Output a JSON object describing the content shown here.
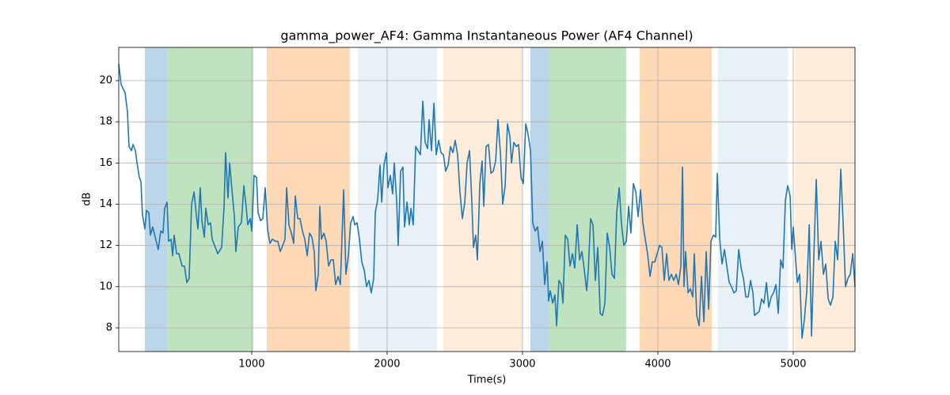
{
  "chart_data": {
    "type": "line",
    "title": "gamma_power_AF4: Gamma Instantaneous Power (AF4 Channel)",
    "xlabel": "Time(s)",
    "ylabel": "dB",
    "xlim": [
      18,
      5456
    ],
    "ylim": [
      6.85,
      21.61
    ],
    "xticks": [
      1000,
      2000,
      3000,
      4000,
      5000
    ],
    "yticks": [
      8,
      10,
      12,
      14,
      16,
      18,
      20
    ],
    "grid": true,
    "spans": [
      {
        "start": 211,
        "end": 374,
        "color": "rgba(31,119,180,0.3)"
      },
      {
        "start": 374,
        "end": 1012,
        "color": "rgba(44,160,44,0.3)"
      },
      {
        "start": 1111,
        "end": 1725,
        "color": "rgba(255,127,14,0.3)"
      },
      {
        "start": 1784,
        "end": 2368,
        "color": "rgba(31,119,180,0.1)"
      },
      {
        "start": 2415,
        "end": 3000,
        "color": "rgba(255,127,14,0.15)"
      },
      {
        "start": 3058,
        "end": 3193,
        "color": "rgba(31,119,180,0.3)"
      },
      {
        "start": 3193,
        "end": 3766,
        "color": "rgba(44,160,44,0.3)"
      },
      {
        "start": 3866,
        "end": 4398,
        "color": "rgba(255,127,14,0.3)"
      },
      {
        "start": 4444,
        "end": 4959,
        "color": "rgba(31,119,180,0.1)"
      },
      {
        "start": 5012,
        "end": 5456,
        "color": "rgba(255,127,14,0.15)"
      }
    ],
    "series": [
      {
        "color": "#1f77b4",
        "x": [
          18,
          36,
          65,
          82,
          94,
          112,
          123,
          141,
          153,
          170,
          182,
          193,
          211,
          223,
          240,
          252,
          269,
          287,
          310,
          328,
          345,
          357,
          375,
          386,
          404,
          416,
          427,
          445,
          462,
          486,
          503,
          521,
          538,
          556,
          574,
          591,
          603,
          620,
          632,
          650,
          661,
          679,
          696,
          708,
          726,
          749,
          778,
          796,
          807,
          825,
          837,
          854,
          872,
          883,
          901,
          924,
          942,
          960,
          971,
          989,
          1000,
          1018,
          1036,
          1047,
          1065,
          1082,
          1100,
          1117,
          1135,
          1152,
          1176,
          1193,
          1211,
          1229,
          1246,
          1258,
          1275,
          1293,
          1310,
          1322,
          1340,
          1357,
          1375,
          1392,
          1410,
          1427,
          1445,
          1462,
          1474,
          1492,
          1503,
          1515,
          1533,
          1550,
          1568,
          1585,
          1603,
          1620,
          1638,
          1655,
          1679,
          1696,
          1714,
          1731,
          1749,
          1761,
          1778,
          1796,
          1813,
          1831,
          1848,
          1866,
          1883,
          1901,
          1913,
          1930,
          1948,
          1960,
          1977,
          1995,
          2006,
          2024,
          2041,
          2053,
          2071,
          2082,
          2100,
          2117,
          2129,
          2147,
          2164,
          2176,
          2193,
          2211,
          2229,
          2246,
          2264,
          2281,
          2299,
          2310,
          2328,
          2346,
          2363,
          2381,
          2398,
          2416,
          2433,
          2451,
          2468,
          2486,
          2503,
          2521,
          2538,
          2556,
          2574,
          2591,
          2609,
          2626,
          2638,
          2655,
          2667,
          2685,
          2702,
          2714,
          2731,
          2749,
          2767,
          2784,
          2802,
          2819,
          2837,
          2854,
          2872,
          2889,
          2907,
          2919,
          2936,
          2954,
          2971,
          2989,
          3006,
          3024,
          3041,
          3059,
          3076,
          3094,
          3112,
          3129,
          3147,
          3164,
          3182,
          3193,
          3205,
          3223,
          3240,
          3252,
          3269,
          3287,
          3299,
          3316,
          3334,
          3351,
          3369,
          3386,
          3404,
          3422,
          3439,
          3457,
          3474,
          3486,
          3503,
          3521,
          3538,
          3556,
          3574,
          3591,
          3609,
          3626,
          3644,
          3661,
          3679,
          3696,
          3714,
          3732,
          3749,
          3767,
          3784,
          3801,
          3819,
          3837,
          3854,
          3872,
          3889,
          3907,
          3924,
          3942,
          3959,
          3977,
          3995,
          4012,
          4030,
          4047,
          4065,
          4082,
          4100,
          4117,
          4135,
          4152,
          4170,
          4182,
          4193,
          4205,
          4223,
          4240,
          4258,
          4269,
          4287,
          4305,
          4322,
          4340,
          4357,
          4375,
          4392,
          4410,
          4427,
          4439,
          4457,
          4474,
          4492,
          4509,
          4527,
          4544,
          4562,
          4579,
          4597,
          4615,
          4632,
          4650,
          4667,
          4685,
          4702,
          4714,
          4731,
          4749,
          4766,
          4784,
          4802,
          4819,
          4837,
          4854,
          4872,
          4889,
          4907,
          4924,
          4942,
          4959,
          4977,
          4989,
          5000,
          5012,
          5030,
          5047,
          5065,
          5082,
          5100,
          5118,
          5135,
          5153,
          5170,
          5188,
          5205,
          5223,
          5240,
          5258,
          5275,
          5293,
          5310,
          5328,
          5351,
          5369,
          5386,
          5404,
          5421,
          5439,
          5456
        ],
        "values": [
          20.8,
          19.8,
          19.4,
          18.5,
          16.8,
          16.6,
          16.9,
          16.6,
          16.0,
          15.3,
          15.1,
          13.5,
          12.8,
          13.7,
          13.6,
          12.5,
          12.9,
          12.4,
          11.8,
          12.7,
          12.6,
          13.8,
          14.1,
          12.2,
          12.3,
          11.5,
          12.5,
          11.6,
          11.6,
          11.0,
          11.0,
          10.2,
          10.4,
          14.0,
          14.6,
          13.5,
          12.8,
          14.8,
          13.2,
          12.4,
          13.8,
          13.0,
          13.1,
          12.3,
          12.0,
          11.6,
          11.9,
          13.9,
          16.5,
          14.3,
          16.0,
          14.7,
          13.4,
          11.7,
          12.9,
          13.1,
          14.9,
          13.8,
          13.0,
          13.3,
          12.7,
          15.4,
          15.3,
          13.6,
          13.2,
          13.3,
          14.8,
          12.8,
          12.1,
          12.3,
          12.2,
          12.2,
          11.7,
          12.0,
          12.3,
          14.8,
          13.0,
          12.6,
          12.1,
          14.4,
          13.3,
          13.3,
          12.7,
          12.3,
          11.5,
          12.6,
          12.4,
          11.7,
          9.8,
          10.6,
          13.9,
          12.3,
          12.6,
          12.2,
          11.0,
          11.3,
          11.3,
          10.1,
          10.5,
          10.1,
          14.7,
          10.6,
          11.5,
          13.1,
          13.4,
          13.0,
          13.1,
          12.3,
          11.2,
          10.8,
          10.0,
          10.3,
          9.7,
          10.4,
          13.6,
          14.2,
          15.9,
          14.1,
          15.9,
          16.5,
          14.8,
          15.4,
          14.5,
          16.0,
          14.1,
          12.0,
          15.6,
          15.8,
          12.9,
          14.1,
          13.0,
          13.8,
          13.0,
          16.8,
          16.6,
          16.4,
          19.0,
          17.0,
          16.7,
          18.1,
          16.6,
          18.9,
          16.4,
          17.1,
          16.5,
          16.4,
          15.6,
          15.9,
          16.8,
          16.5,
          17.1,
          16.4,
          14.6,
          13.3,
          14.1,
          16.0,
          16.6,
          14.1,
          11.9,
          12.5,
          11.3,
          15.0,
          16.1,
          13.9,
          16.8,
          16.9,
          15.5,
          15.6,
          16.1,
          18.1,
          16.5,
          14.0,
          14.9,
          17.9,
          17.3,
          16.0,
          17.0,
          16.8,
          16.9,
          15.3,
          15.0,
          17.9,
          17.4,
          16.6,
          13.1,
          12.7,
          12.9,
          11.7,
          12.2,
          10.1,
          11.2,
          9.3,
          9.8,
          9.2,
          9.6,
          8.1,
          10.3,
          10.1,
          9.2,
          12.5,
          12.3,
          11.0,
          11.6,
          10.9,
          13.0,
          11.3,
          11.7,
          10.8,
          9.8,
          10.8,
          13.3,
          13.0,
          10.3,
          11.9,
          8.7,
          8.6,
          9.2,
          12.6,
          11.9,
          10.6,
          10.4,
          13.6,
          14.8,
          13.0,
          12.0,
          12.2,
          13.9,
          12.6,
          15.0,
          14.6,
          13.4,
          14.7,
          13.1,
          12.3,
          11.6,
          10.5,
          11.2,
          11.2,
          11.6,
          12.0,
          11.9,
          10.3,
          11.6,
          10.3,
          10.6,
          10.3,
          10.6,
          10.1,
          11.0,
          15.8,
          10.0,
          11.7,
          9.7,
          9.9,
          9.5,
          11.6,
          8.6,
          8.1,
          10.5,
          8.3,
          11.7,
          8.9,
          12.2,
          12.5,
          12.4,
          15.5,
          12.3,
          11.1,
          11.8,
          11.0,
          10.2,
          10.0,
          9.7,
          9.8,
          11.8,
          10.9,
          10.4,
          9.5,
          9.5,
          10.3,
          9.7,
          8.6,
          8.7,
          8.8,
          9.4,
          9.2,
          10.2,
          9.0,
          9.5,
          9.7,
          10.1,
          8.7,
          11.3,
          10.9,
          14.2,
          14.9,
          14.4,
          11.8,
          12.9,
          11.8,
          10.2,
          10.6,
          7.5,
          8.4,
          9.8,
          13.0,
          7.6,
          11.7,
          15.2,
          11.3,
          12.2,
          10.6,
          11.1,
          9.4,
          9.1,
          9.5,
          12.2,
          11.3,
          15.7,
          13.0,
          10.0,
          10.4,
          10.6,
          11.6,
          10.0
        ]
      }
    ]
  }
}
